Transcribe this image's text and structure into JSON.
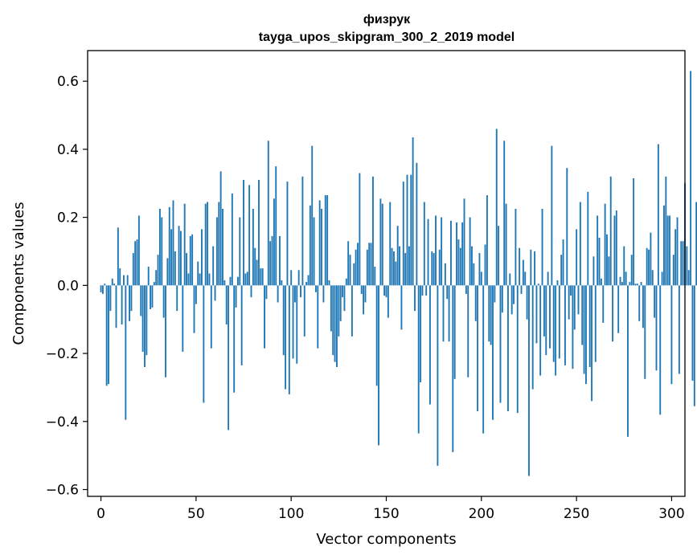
{
  "chart_data": {
    "type": "bar",
    "title": "физрук",
    "subtitle": "tayga_upos_skipgram_300_2_2019 model",
    "xlabel": "Vector components",
    "ylabel": "Components values",
    "xlim": [
      -7,
      307
    ],
    "ylim": [
      -0.62,
      0.69
    ],
    "xticks": [
      0,
      50,
      100,
      150,
      200,
      250,
      300
    ],
    "xtick_labels": [
      "0",
      "50",
      "100",
      "150",
      "200",
      "250",
      "300"
    ],
    "yticks": [
      -0.6,
      -0.4,
      -0.2,
      0.0,
      0.2,
      0.4,
      0.6
    ],
    "ytick_labels": [
      "−0.6",
      "−0.4",
      "−0.2",
      "0.0",
      "0.2",
      "0.4",
      "0.6"
    ],
    "grid": false,
    "bar_color": "#1f77b4",
    "series": [
      {
        "values": [
          -0.02,
          -0.025,
          0.005,
          -0.295,
          -0.29,
          -0.075,
          0.02,
          0.005,
          -0.125,
          0.17,
          0.05,
          -0.115,
          0.03,
          -0.395,
          0.03,
          -0.105,
          -0.075,
          0.095,
          0.13,
          0.135,
          0.205,
          -0.09,
          -0.195,
          -0.24,
          -0.205,
          0.055,
          -0.07,
          -0.065,
          0.01,
          0.045,
          0.09,
          0.225,
          0.2,
          -0.095,
          -0.27,
          0.08,
          0.23,
          0.165,
          0.25,
          0.1,
          -0.075,
          0.175,
          0.16,
          -0.195,
          0.24,
          0.095,
          0.035,
          0.145,
          0.15,
          -0.14,
          -0.055,
          0.07,
          0.035,
          0.165,
          -0.345,
          0.24,
          0.245,
          0.035,
          -0.185,
          0.115,
          -0.045,
          0.2,
          0.245,
          0.335,
          0.225,
          0.015,
          -0.115,
          -0.425,
          0.025,
          0.27,
          -0.315,
          -0.065,
          0.025,
          0.2,
          -0.235,
          0.31,
          0.035,
          0.04,
          0.295,
          -0.035,
          0.225,
          0.11,
          0.075,
          0.31,
          0.05,
          0.05,
          -0.185,
          -0.04,
          0.425,
          0.13,
          0.145,
          0.255,
          0.35,
          -0.05,
          0.145,
          0.015,
          -0.205,
          -0.305,
          0.305,
          -0.32,
          0.045,
          -0.215,
          -0.05,
          -0.23,
          0.045,
          -0.035,
          0.32,
          -0.15,
          0.01,
          0.03,
          0.235,
          0.41,
          0.2,
          -0.02,
          -0.185,
          0.25,
          0.225,
          -0.05,
          0.265,
          0.265,
          0.015,
          -0.135,
          -0.205,
          -0.225,
          -0.24,
          -0.15,
          -0.105,
          -0.035,
          -0.075,
          0.02,
          0.13,
          0.09,
          -0.15,
          0.065,
          0.105,
          0.125,
          0.33,
          -0.025,
          -0.085,
          -0.05,
          0.105,
          0.125,
          0.125,
          0.32,
          0.055,
          -0.295,
          -0.47,
          0.255,
          0.24,
          -0.03,
          -0.035,
          -0.095,
          0.245,
          0.11,
          0.1,
          0.07,
          0.175,
          0.115,
          -0.13,
          0.305,
          0.095,
          0.325,
          0.115,
          0.325,
          0.435,
          -0.075,
          0.36,
          -0.435,
          -0.285,
          -0.03,
          0.245,
          -0.03,
          0.195,
          -0.35,
          0.1,
          0.095,
          0.205,
          -0.53,
          0.105,
          0.2,
          -0.165,
          0.065,
          -0.04,
          -0.165,
          0.19,
          -0.49,
          -0.275,
          0.185,
          0.135,
          0.11,
          0.185,
          0.255,
          -0.025,
          -0.27,
          0.2,
          0.115,
          0.065,
          -0.105,
          -0.37,
          0.095,
          0.04,
          -0.435,
          0.12,
          0.265,
          -0.165,
          -0.175,
          -0.395,
          -0.05,
          0.46,
          0.175,
          -0.345,
          -0.08,
          0.425,
          0.24,
          -0.37,
          0.035,
          -0.085,
          -0.055,
          0.225,
          -0.375,
          0.11,
          -0.025,
          0.075,
          0.04,
          -0.1,
          -0.56,
          0.105,
          -0.305,
          0.1,
          -0.17,
          0.005,
          -0.265,
          0.225,
          -0.15,
          -0.205,
          0.04,
          -0.185,
          0.41,
          -0.225,
          -0.265,
          0.015,
          -0.215,
          0.09,
          0.135,
          -0.235,
          0.345,
          -0.1,
          -0.03,
          -0.245,
          -0.13,
          0.165,
          -0.085,
          0.245,
          -0.175,
          -0.26,
          -0.29,
          0.275,
          -0.24,
          -0.34,
          0.085,
          -0.225,
          0.205,
          0.14,
          0.02,
          -0.11,
          0.24,
          0.15,
          0.085,
          0.32,
          -0.165,
          0.205,
          0.22,
          -0.14,
          0.025,
          0.01,
          0.115,
          0.04,
          -0.445,
          0.01,
          0.09,
          0.315,
          0.005,
          0.005,
          -0.105,
          0.01,
          -0.125,
          -0.275,
          0.11,
          0.105,
          0.155,
          0.045,
          -0.095,
          -0.25,
          0.415,
          -0.38,
          0.04,
          0.235,
          0.32,
          0.205,
          0.205,
          -0.29,
          0.09,
          0.165,
          0.2,
          -0.26,
          0.13,
          0.13,
          0.3,
          0.115,
          0.045,
          0.63,
          -0.28,
          -0.355,
          0.245,
          -0.21
        ]
      }
    ]
  }
}
